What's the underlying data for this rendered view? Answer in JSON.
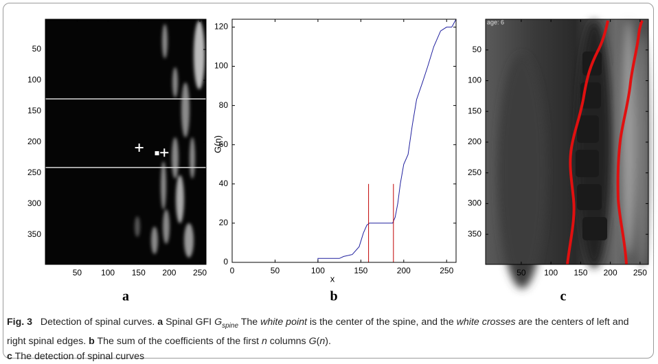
{
  "chart_data": [
    {
      "type": "image",
      "panel_label": "a",
      "xlim": [
        -2,
        260
      ],
      "ylim": [
        1,
        398
      ],
      "y_inverted": true,
      "xticks": [
        50,
        100,
        150,
        200,
        250
      ],
      "yticks": [
        50,
        100,
        150,
        200,
        250,
        300,
        350
      ],
      "hlines": [
        130,
        241
      ],
      "hline_color": "#d8d8d8",
      "crosses": {
        "x": [
          151,
          192
        ],
        "y": [
          209,
          217
        ]
      },
      "point": {
        "x": 180,
        "y": 218
      },
      "marker_color": "#ffffff"
    },
    {
      "type": "line",
      "panel_label": "b",
      "x_label": "x",
      "y_label": "G(n)",
      "xlim": [
        0,
        261
      ],
      "ylim": [
        0,
        124
      ],
      "xticks": [
        0,
        50,
        100,
        150,
        200,
        250
      ],
      "yticks": [
        0,
        20,
        40,
        60,
        80,
        100,
        120
      ],
      "x": [
        0,
        100,
        100,
        125,
        130,
        140,
        148,
        153,
        157,
        160,
        187,
        190,
        193,
        196,
        200,
        205,
        210,
        215,
        222,
        228,
        235,
        243,
        250,
        256,
        261
      ],
      "series": [
        {
          "color": "#1f1f9e",
          "values": [
            0,
            0,
            2,
            2,
            3,
            4,
            8,
            15,
            19,
            20,
            20,
            23,
            30,
            40,
            50,
            55,
            70,
            83,
            92,
            100,
            110,
            118,
            120,
            120,
            124
          ]
        }
      ],
      "vlines": {
        "x": [
          159,
          188
        ],
        "height": 40,
        "color": "#c00000"
      }
    },
    {
      "type": "image",
      "panel_label": "c",
      "image_text": "age: 6",
      "xlim": [
        -10,
        264
      ],
      "ylim": [
        0,
        399
      ],
      "y_inverted": true,
      "xticks": [
        50,
        100,
        150,
        200,
        250
      ],
      "yticks": [
        50,
        100,
        150,
        200,
        250,
        300,
        350
      ]
    }
  ],
  "caption": [
    "Fig. 3",
    "Detection of spinal curves.",
    "a",
    "Spinal GFI",
    "G",
    "spine",
    "The",
    "white point",
    "is the center of the spine, and the",
    "white crosses",
    "are the centers of left and right spinal edges.",
    "b",
    "The sum of the coefficients of the first",
    "n",
    "columns",
    "G",
    "n",
    "c",
    "The detection of spinal curves"
  ]
}
